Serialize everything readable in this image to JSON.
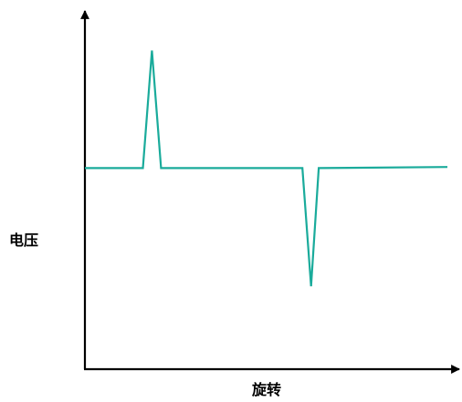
{
  "chart_data": {
    "type": "line",
    "xlabel": "旋转",
    "ylabel": "电压",
    "grid": false,
    "xlim": [
      0,
      100
    ],
    "ylim": [
      0,
      100
    ],
    "series": [
      {
        "x": [
          0,
          16,
          18.5,
          21,
          60,
          62.4,
          64.5,
          100
        ],
        "y": [
          57.3,
          57.3,
          90.8,
          57.3,
          57.3,
          23.6,
          57.3,
          57.6
        ]
      }
    ],
    "colors": {
      "line": "#1aab9b",
      "axis": "#000000"
    }
  }
}
